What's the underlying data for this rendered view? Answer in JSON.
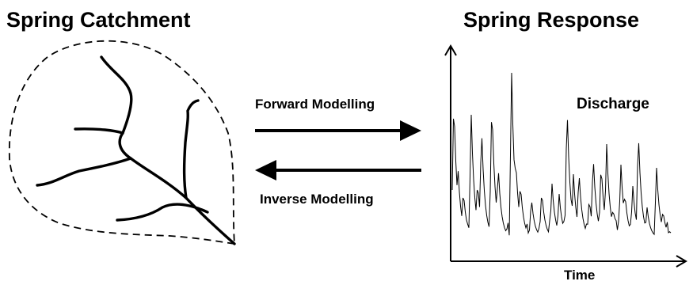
{
  "left_panel": {
    "title": "Spring Catchment"
  },
  "right_panel": {
    "title": "Spring Response",
    "series_label": "Discharge",
    "x_axis_label": "Time"
  },
  "arrows": {
    "forward_label": "Forward Modelling",
    "inverse_label": "Inverse Modelling"
  },
  "colors": {
    "ink": "#000000",
    "background": "#ffffff"
  }
}
